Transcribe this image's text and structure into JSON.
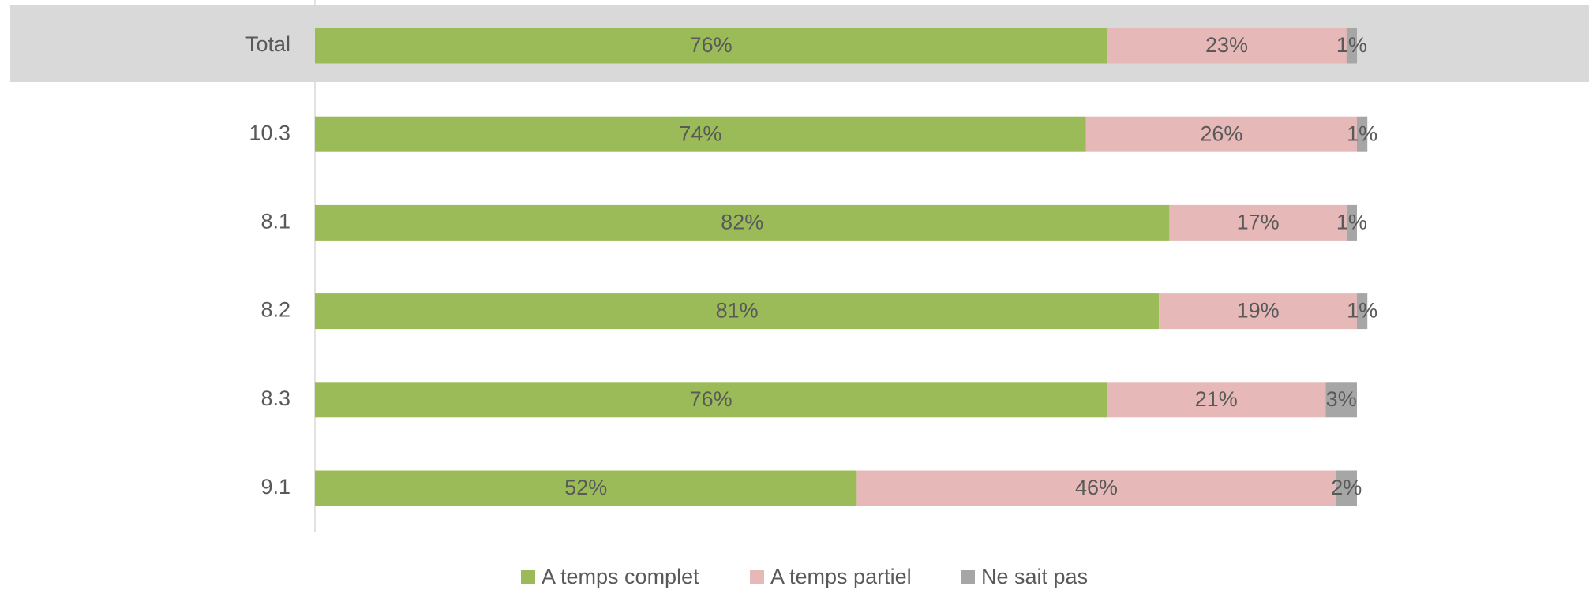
{
  "chart_data": {
    "type": "stacked-barh",
    "categories": [
      "Total",
      "10.3",
      "8.1",
      "8.2",
      "8.3",
      "9.1"
    ],
    "xlim": [
      0,
      100
    ],
    "series": [
      {
        "name": "A temps complet",
        "color": "#9bbb59",
        "values": [
          76,
          74,
          82,
          81,
          76,
          52
        ],
        "value_labels": [
          "76%",
          "74%",
          "82%",
          "81%",
          "76%",
          "52%"
        ]
      },
      {
        "name": "A temps partiel",
        "color": "#e6b9b8",
        "values": [
          23,
          26,
          17,
          19,
          21,
          46
        ],
        "value_labels": [
          "23%",
          "26%",
          "17%",
          "19%",
          "21%",
          "46%"
        ]
      },
      {
        "name": "Ne sait pas",
        "color": "#a6a6a6",
        "values": [
          1,
          1,
          1,
          1,
          3,
          2
        ],
        "value_labels": [
          "1%",
          "1%",
          "1%",
          "1%",
          "3%",
          "2%"
        ]
      }
    ],
    "legend": "bottom"
  }
}
